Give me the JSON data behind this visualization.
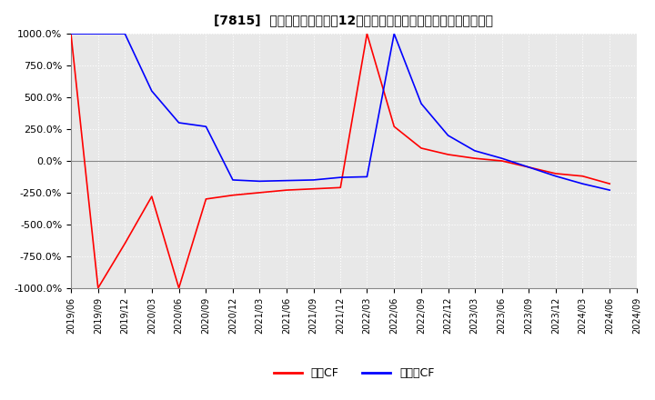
{
  "title": "[7815]  キャッシュフローの12か月移動合計の対前年同期増減率の推移",
  "ylim": [
    -1000,
    1000
  ],
  "yticks": [
    1000,
    750,
    500,
    250,
    0,
    -250,
    -500,
    -750,
    -1000
  ],
  "ytick_labels": [
    "1000.0%",
    "750.0%",
    "500.0%",
    "250.0%",
    "0.0%",
    "-250.0%",
    "-500.0%",
    "-750.0%",
    "-1000.0%"
  ],
  "legend_labels": [
    "営業CF",
    "フリーCF"
  ],
  "line_colors": [
    "#ff0000",
    "#0000ff"
  ],
  "background_color": "#e8e8e8",
  "grid_color": "#ffffff",
  "dates": [
    "2019/06",
    "2019/09",
    "2019/12",
    "2020/03",
    "2020/06",
    "2020/09",
    "2020/12",
    "2021/03",
    "2021/06",
    "2021/09",
    "2021/12",
    "2022/03",
    "2022/06",
    "2022/09",
    "2022/12",
    "2023/03",
    "2023/06",
    "2023/09",
    "2023/12",
    "2024/03",
    "2024/06"
  ],
  "operating_cf": [
    1000,
    -1000,
    -650,
    -280,
    -1000,
    -300,
    -270,
    -250,
    -230,
    -220,
    -210,
    1000,
    270,
    100,
    50,
    20,
    0,
    -50,
    -100,
    -120,
    -180
  ],
  "free_cf": [
    1000,
    1000,
    1000,
    550,
    300,
    270,
    -150,
    -160,
    -155,
    -150,
    -130,
    -125,
    1000,
    450,
    200,
    80,
    20,
    -50,
    -120,
    -180,
    -230
  ],
  "x_extra": [
    "2024/09"
  ],
  "title_fontsize": 10,
  "legend_fontsize": 9
}
